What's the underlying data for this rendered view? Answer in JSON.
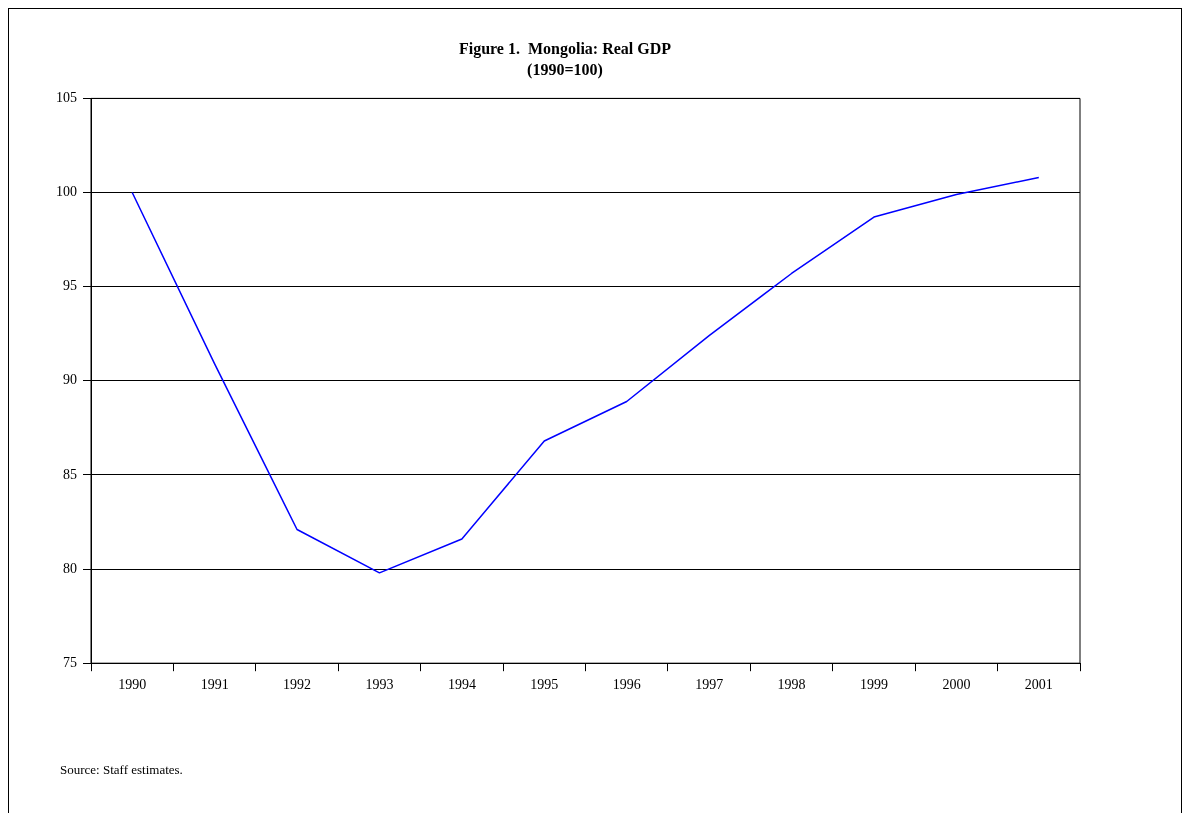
{
  "chart_data": {
    "type": "line",
    "title": "Figure 1.  Mongolia: Real GDP",
    "subtitle": "(1990=100)",
    "categories": [
      "1990",
      "1991",
      "1992",
      "1993",
      "1994",
      "1995",
      "1996",
      "1997",
      "1998",
      "1999",
      "2000",
      "2001"
    ],
    "series": [
      {
        "color": "#0000ff",
        "values": [
          100,
          90.9,
          82.1,
          79.8,
          81.6,
          86.8,
          88.9,
          92.4,
          95.7,
          98.7,
          99.9,
          100.8
        ]
      }
    ],
    "ylim": [
      75,
      105
    ],
    "yticks": [
      75,
      80,
      85,
      90,
      95,
      100,
      105
    ],
    "grid": "y",
    "legend": false,
    "marker": "none",
    "line_style": "solid",
    "annotations": [
      "Source: Staff estimates."
    ]
  }
}
